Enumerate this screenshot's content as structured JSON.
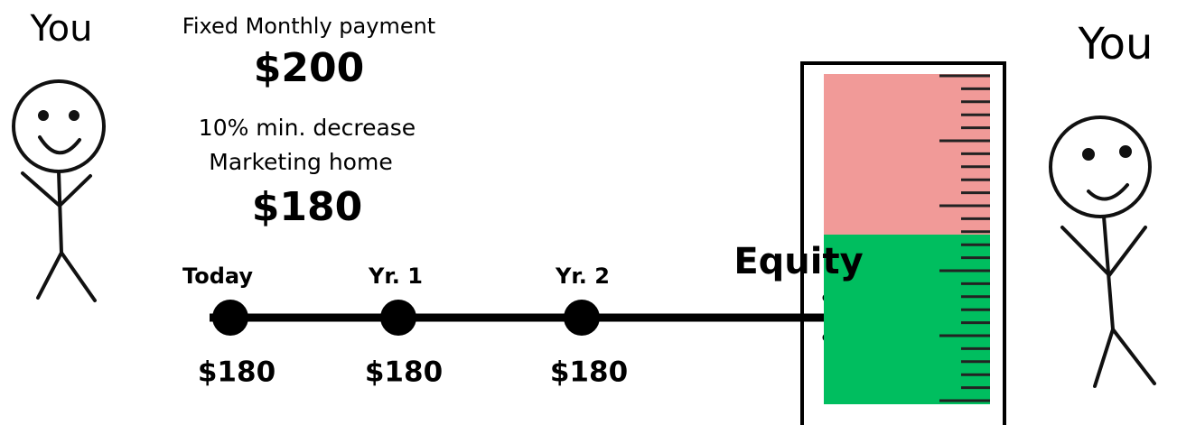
{
  "left_figure": {
    "label": "You"
  },
  "right_figure": {
    "label": "You"
  },
  "offer": {
    "caption": "Fixed Monthly payment",
    "amount": "$200"
  },
  "discount": {
    "line1": "10% min. decrease",
    "line2": "Marketing home",
    "amount": "$180"
  },
  "timeline": [
    {
      "label": "Today",
      "value": "$180"
    },
    {
      "label": "Yr. 1",
      "value": "$180"
    },
    {
      "label": "Yr. 2",
      "value": "$180"
    }
  ],
  "gauge": {
    "label": "Equity"
  }
}
